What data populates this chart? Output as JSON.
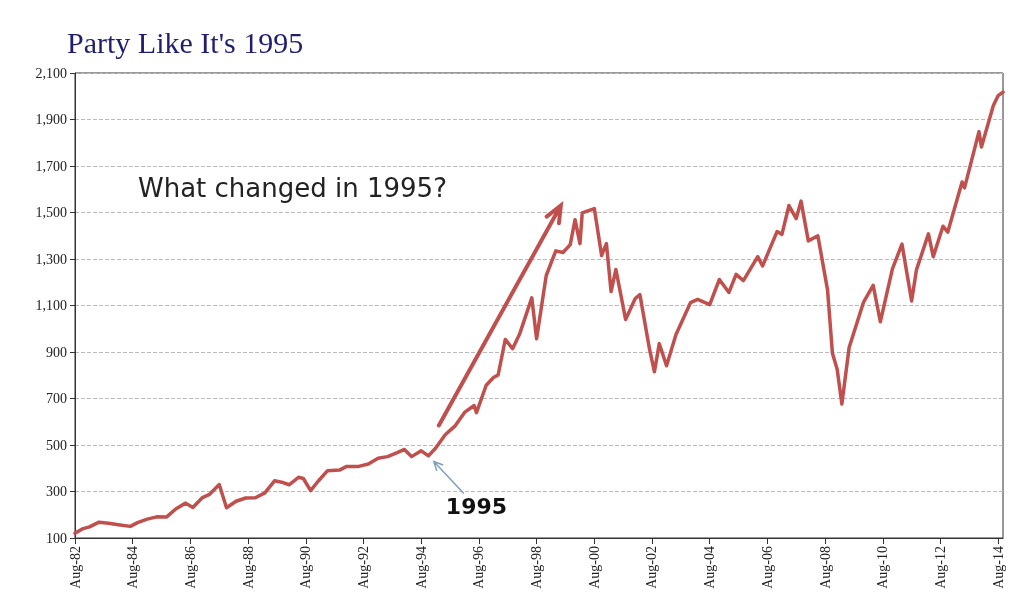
{
  "chart_data": {
    "type": "line",
    "title": "Party Like It's 1995",
    "x": [
      "1982-08",
      "1982-11",
      "1983-02",
      "1983-06",
      "1983-10",
      "1984-02",
      "1984-07",
      "1984-10",
      "1985-02",
      "1985-06",
      "1985-10",
      "1986-02",
      "1986-06",
      "1986-09",
      "1987-01",
      "1987-04",
      "1987-08",
      "1987-11",
      "1988-03",
      "1988-07",
      "1988-11",
      "1989-03",
      "1989-07",
      "1989-10",
      "1990-01",
      "1990-05",
      "1990-07",
      "1990-10",
      "1991-01",
      "1991-05",
      "1991-10",
      "1992-01",
      "1992-06",
      "1992-10",
      "1993-02",
      "1993-06",
      "1993-10",
      "1994-01",
      "1994-04",
      "1994-08",
      "1994-11",
      "1995-02",
      "1995-06",
      "1995-10",
      "1996-02",
      "1996-06",
      "1996-07",
      "1996-11",
      "1997-02",
      "1997-04",
      "1997-07",
      "1997-10",
      "1998-01",
      "1998-06",
      "1998-08",
      "1998-12",
      "1999-04",
      "1999-07",
      "1999-10",
      "1999-12",
      "2000-02",
      "2000-03",
      "2000-08",
      "2000-11",
      "2001-01",
      "2001-03",
      "2001-05",
      "2001-09",
      "2002-01",
      "2002-03",
      "2002-07",
      "2002-09",
      "2002-11",
      "2003-02",
      "2003-06",
      "2003-12",
      "2004-03",
      "2004-08",
      "2004-12",
      "2005-04",
      "2005-07",
      "2005-10",
      "2006-04",
      "2006-06",
      "2006-12",
      "2007-02",
      "2007-05",
      "2007-08",
      "2007-10",
      "2008-01",
      "2008-05",
      "2008-09",
      "2008-11",
      "2009-01",
      "2009-03",
      "2009-06",
      "2009-12",
      "2010-04",
      "2010-07",
      "2010-12",
      "2011-04",
      "2011-08",
      "2011-10",
      "2012-03",
      "2012-05",
      "2012-09",
      "2012-11",
      "2013-05",
      "2013-06",
      "2013-12",
      "2014-01",
      "2014-06",
      "2014-08",
      "2014-10"
    ],
    "series": [
      {
        "color": "#c0504d",
        "values": [
          120,
          139,
          148,
          168,
          163,
          157,
          150,
          166,
          181,
          191,
          190,
          226,
          250,
          231,
          274,
          288,
          330,
          230,
          258,
          272,
          273,
          294,
          346,
          340,
          329,
          361,
          356,
          304,
          343,
          389,
          392,
          408,
          408,
          418,
          443,
          450,
          467,
          481,
          450,
          475,
          453,
          487,
          544,
          581,
          640,
          670,
          639,
          757,
          790,
          801,
          954,
          914,
          980,
          1133,
          957,
          1229,
          1335,
          1328,
          1362,
          1469,
          1366,
          1498,
          1517,
          1315,
          1366,
          1160,
          1255,
          1040,
          1130,
          1147,
          912,
          815,
          936,
          841,
          975,
          1112,
          1126,
          1104,
          1212,
          1156,
          1234,
          1207,
          1310,
          1270,
          1418,
          1406,
          1530,
          1474,
          1549,
          1378,
          1400,
          1166,
          896,
          825,
          676,
          919,
          1115,
          1187,
          1030,
          1258,
          1364,
          1119,
          1253,
          1408,
          1310,
          1441,
          1416,
          1631,
          1606,
          1848,
          1782,
          1960,
          2003,
          2018
        ]
      }
    ],
    "xlim": [
      "1982-08",
      "2014-10"
    ],
    "xticks": [
      {
        "value": "1982-08",
        "label": "Aug-82"
      },
      {
        "value": "1984-08",
        "label": "Aug-84"
      },
      {
        "value": "1986-08",
        "label": "Aug-86"
      },
      {
        "value": "1988-08",
        "label": "Aug-88"
      },
      {
        "value": "1990-08",
        "label": "Aug-90"
      },
      {
        "value": "1992-08",
        "label": "Aug-92"
      },
      {
        "value": "1994-08",
        "label": "Aug-94"
      },
      {
        "value": "1996-08",
        "label": "Aug-96"
      },
      {
        "value": "1998-08",
        "label": "Aug-98"
      },
      {
        "value": "2000-08",
        "label": "Aug-00"
      },
      {
        "value": "2002-08",
        "label": "Aug-02"
      },
      {
        "value": "2004-08",
        "label": "Aug-04"
      },
      {
        "value": "2006-08",
        "label": "Aug-06"
      },
      {
        "value": "2008-08",
        "label": "Aug-08"
      },
      {
        "value": "2010-08",
        "label": "Aug-10"
      },
      {
        "value": "2012-08",
        "label": "Aug-12"
      },
      {
        "value": "2014-08",
        "label": "Aug-14"
      }
    ],
    "ylim": [
      100,
      2100
    ],
    "yticks": [
      {
        "value": 100,
        "label": "100"
      },
      {
        "value": 300,
        "label": "300"
      },
      {
        "value": 500,
        "label": "500"
      },
      {
        "value": 700,
        "label": "700"
      },
      {
        "value": 900,
        "label": "900"
      },
      {
        "value": 1100,
        "label": "1,100"
      },
      {
        "value": 1300,
        "label": "1,300"
      },
      {
        "value": 1500,
        "label": "1,500"
      },
      {
        "value": 1700,
        "label": "1,700"
      },
      {
        "value": 1900,
        "label": "1,900"
      },
      {
        "value": 2100,
        "label": "2,100"
      }
    ],
    "grid": "y",
    "marker": "none",
    "line_style": "solid",
    "annotations": [
      "What changed in 1995?",
      {
        "text": "1995",
        "x": "1994-12",
        "y": 455
      }
    ]
  }
}
